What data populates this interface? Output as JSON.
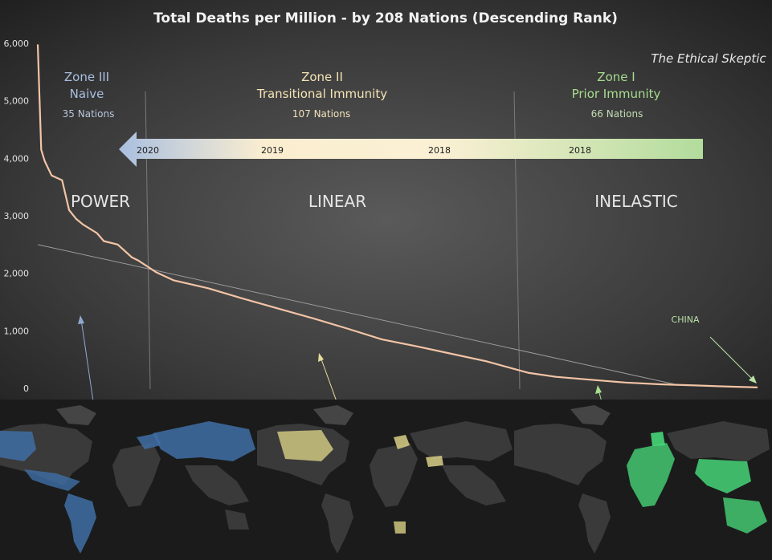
{
  "chart_data": {
    "type": "line",
    "title": "Total  Deaths  per  Million  - by  208  Nations  (Descending  Rank)",
    "watermark": "The Ethical Skeptic",
    "y_ticks": [
      "6,000",
      "5,000",
      "4,000",
      "3,000",
      "2,000",
      "1,000",
      "0"
    ],
    "ylim": [
      0,
      6000
    ],
    "xlim": [
      1,
      208
    ],
    "x": [
      1,
      2,
      3,
      5,
      8,
      10,
      12,
      14,
      18,
      20,
      24,
      28,
      30,
      35,
      40,
      50,
      60,
      70,
      80,
      90,
      100,
      110,
      120,
      130,
      142,
      150,
      160,
      170,
      180,
      190,
      200,
      208
    ],
    "values": [
      5980,
      4150,
      3950,
      3700,
      3620,
      3100,
      2950,
      2850,
      2700,
      2560,
      2500,
      2280,
      2220,
      2020,
      1880,
      1740,
      1560,
      1390,
      1220,
      1040,
      850,
      730,
      600,
      470,
      270,
      200,
      150,
      100,
      70,
      50,
      30,
      15
    ],
    "trend_line": {
      "x": [
        1,
        185
      ],
      "y": [
        2500,
        60
      ]
    },
    "zones": [
      {
        "title": "Zone III",
        "subtitle": "Naive",
        "count": "35 Nations",
        "label": "POWER",
        "color": "#a9bfe0",
        "count_color": "#b8c6dd"
      },
      {
        "title": "Zone II",
        "subtitle": "Transitional Immunity",
        "count": "107 Nations",
        "label": "LINEAR",
        "color": "#f4e3b4",
        "count_color": "#f0e2bc"
      },
      {
        "title": "Zone I",
        "subtitle": "Prior Immunity",
        "count": "66 Nations",
        "label": "INELASTIC",
        "color": "#a7dc8e",
        "count_color": "#c5dcb4"
      }
    ],
    "timeline_years": [
      "2020",
      "2019",
      "2018",
      "2018"
    ],
    "annotation": {
      "text": "CHINA",
      "color": "#b9e0a6"
    },
    "colors": {
      "line": "#f2c4a6",
      "zone3_map": "#3f6fa6",
      "zone2_map": "#d8cf86",
      "zone1_map": "#49e07e"
    }
  }
}
